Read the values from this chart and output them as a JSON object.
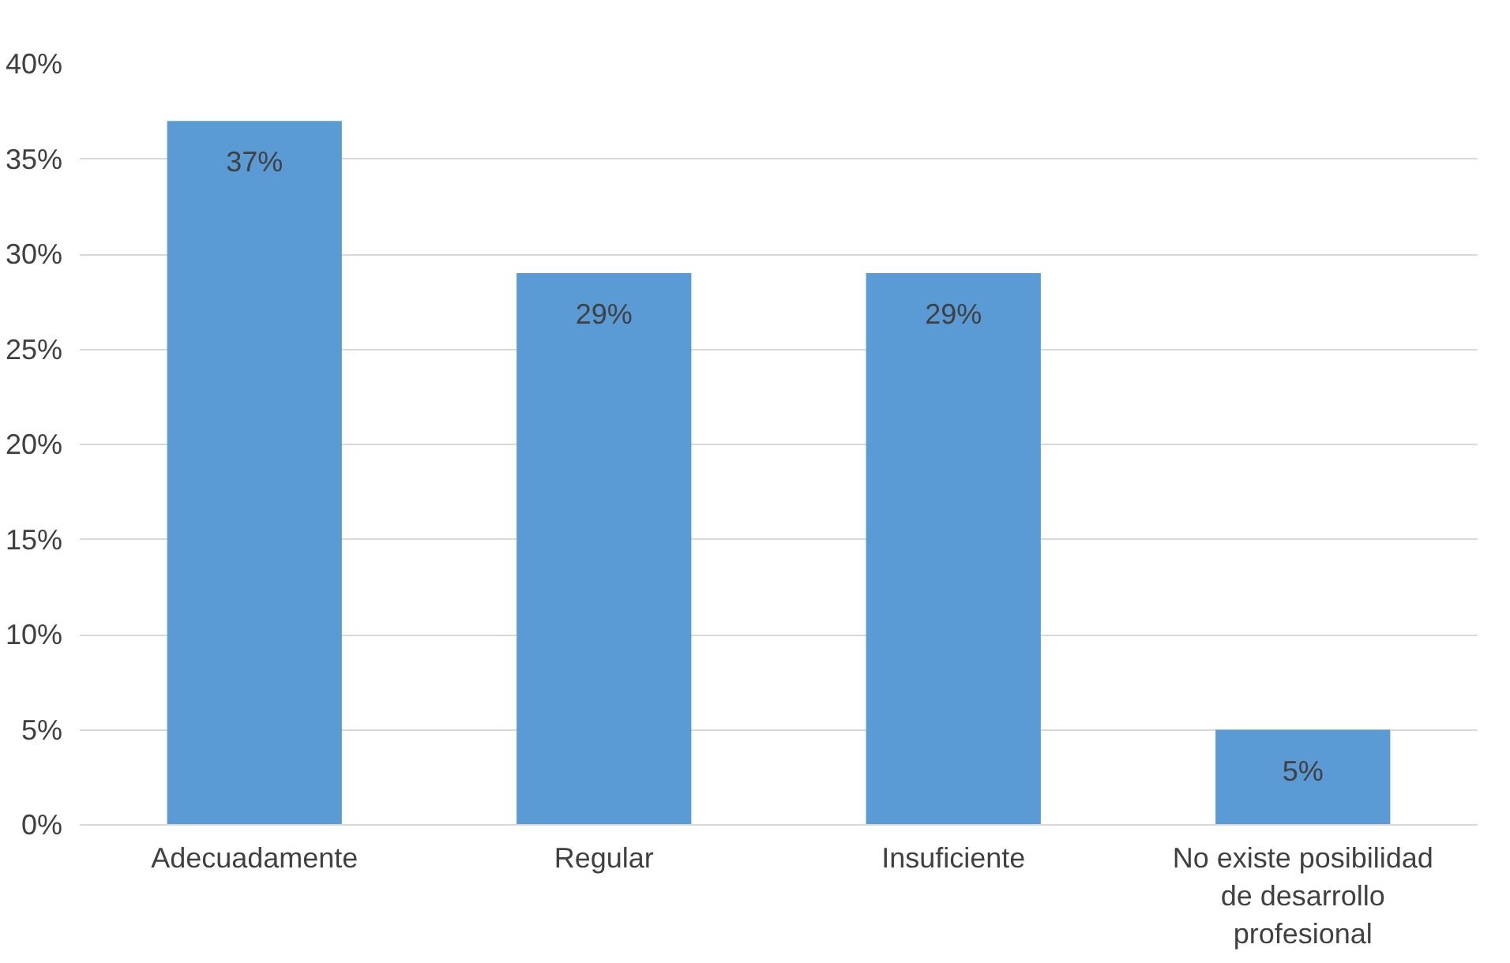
{
  "chart_data": {
    "type": "bar",
    "categories": [
      "Adecuadamente",
      "Regular",
      "Insuficiente",
      "No existe posibilidad de desarrollo profesional"
    ],
    "values": [
      37,
      29,
      29,
      5
    ],
    "value_labels": [
      "37%",
      "29%",
      "29%",
      "5%"
    ],
    "color": "#5b9bd5",
    "ylim": [
      0,
      40
    ],
    "yticks": [
      {
        "value": 0,
        "label": "0%"
      },
      {
        "value": 5,
        "label": "5%"
      },
      {
        "value": 10,
        "label": "10%"
      },
      {
        "value": 15,
        "label": "15%"
      },
      {
        "value": 20,
        "label": "20%"
      },
      {
        "value": 25,
        "label": "25%"
      },
      {
        "value": 30,
        "label": "30%"
      },
      {
        "value": 35,
        "label": "35%"
      },
      {
        "value": 40,
        "label": "40%"
      }
    ],
    "grid": "y"
  }
}
